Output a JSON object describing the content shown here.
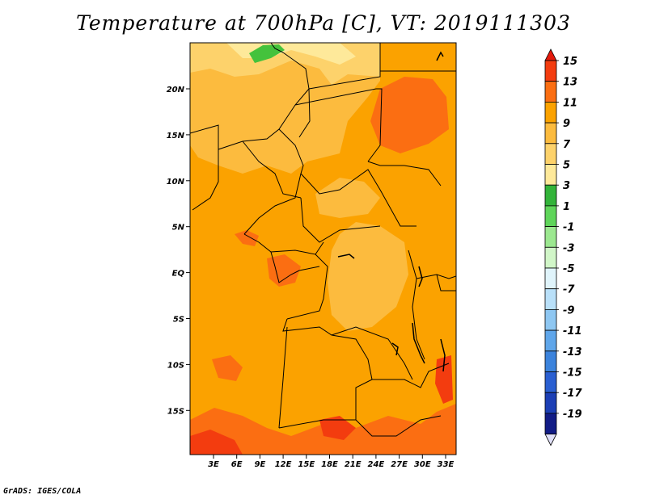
{
  "title": "Temperature at 700hPa [C], VT: 2019111303",
  "footer": "GrADS: IGES/COLA",
  "map": {
    "lat_labels": [
      "20N",
      "15N",
      "10N",
      "5N",
      "EQ",
      "5S",
      "10S",
      "15S"
    ],
    "lon_labels": [
      "3E",
      "6E",
      "9E",
      "12E",
      "15E",
      "18E",
      "21E",
      "24E",
      "27E",
      "30E",
      "33E"
    ],
    "dominant_range": "9 to 11 C",
    "colors": {
      "c3_5": "#fee99a",
      "c5_7": "#fdd26b",
      "c7_9": "#fcbb3e",
      "c9_11": "#fba200",
      "c11_13": "#fb6e12",
      "c13_15": "#f33c0f",
      "green": "#44c23c"
    }
  },
  "colorbar": {
    "levels": [
      "15",
      "13",
      "11",
      "9",
      "7",
      "5",
      "3",
      "1",
      "-1",
      "-3",
      "-5",
      "-7",
      "-9",
      "-11",
      "-13",
      "-15",
      "-17",
      "-19"
    ],
    "colors": [
      "#e41a0c",
      "#f33c0f",
      "#fb6e12",
      "#fba200",
      "#fcbb3e",
      "#fdd26b",
      "#fee99a",
      "#33b43a",
      "#5fd55a",
      "#9ce890",
      "#d1f6c8",
      "#e0f4fb",
      "#b9e0f9",
      "#8ec7f2",
      "#5fa6ea",
      "#3b83dc",
      "#2a5fd1",
      "#1c3fb5",
      "#121c86",
      "#e0e0f8"
    ]
  }
}
